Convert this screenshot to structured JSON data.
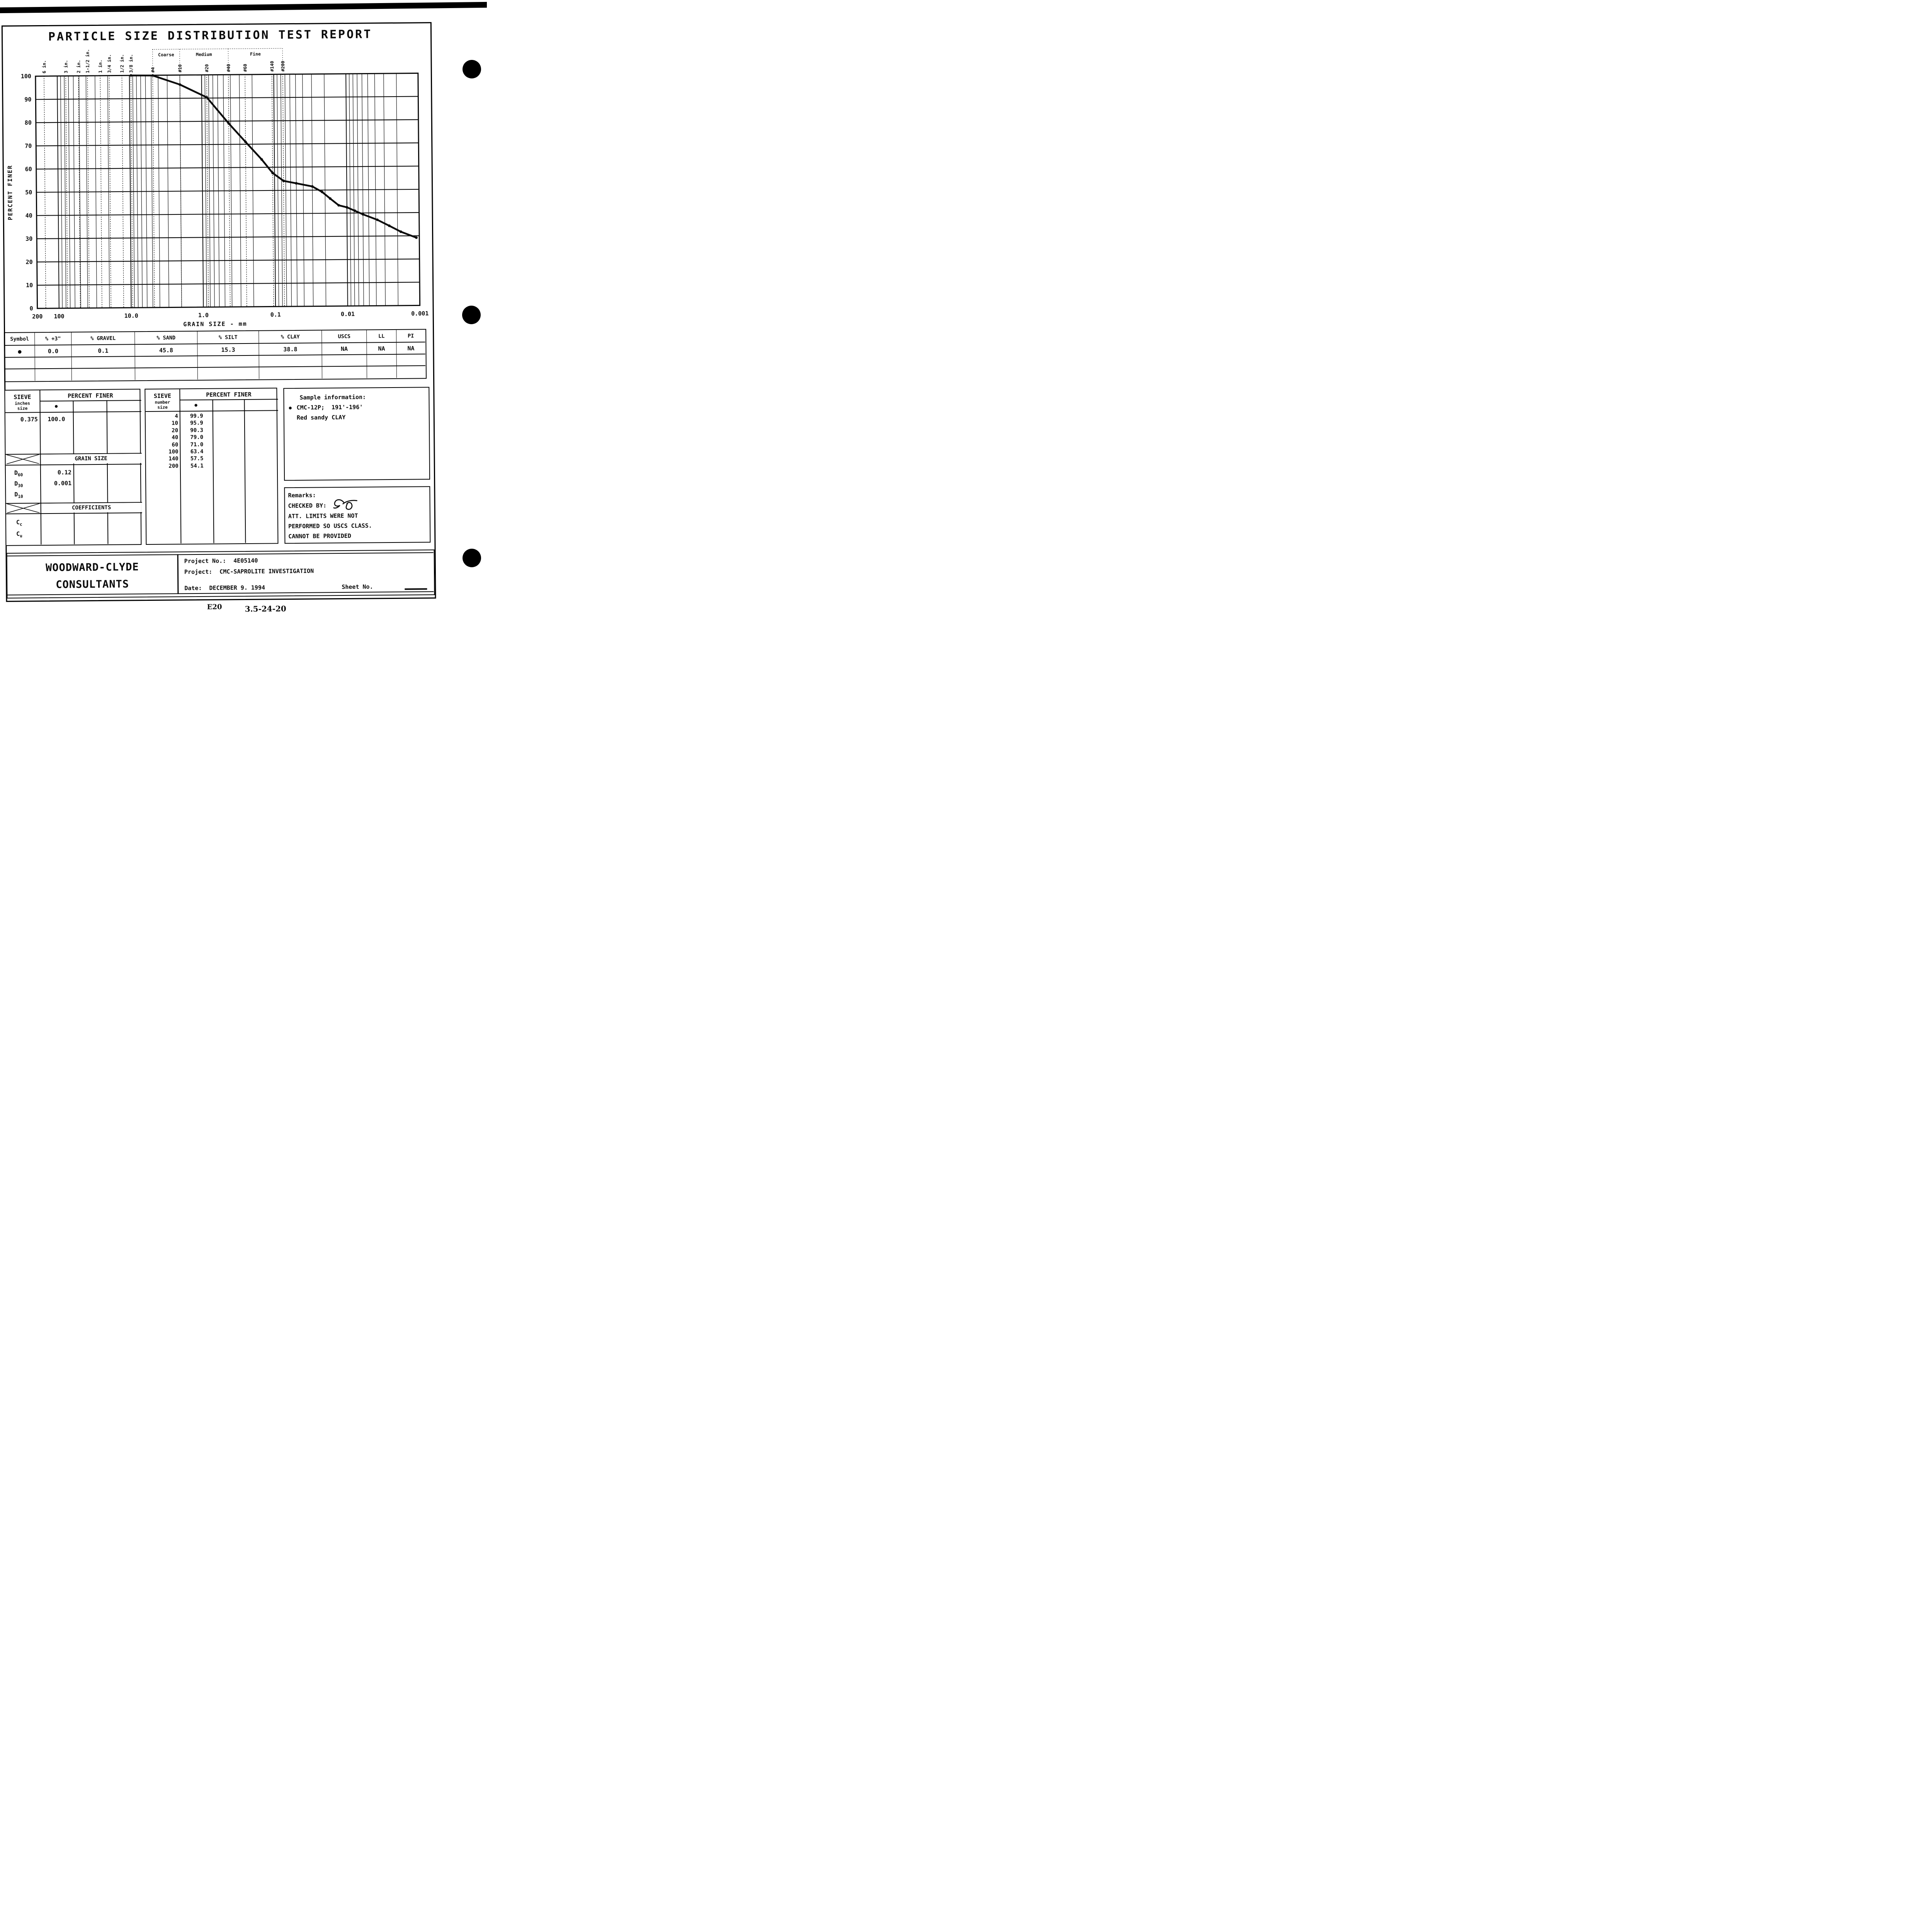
{
  "colors": {
    "ink": "#0b0b0b",
    "paper": "#ffffff"
  },
  "page": {
    "title": "PARTICLE SIZE DISTRIBUTION TEST REPORT",
    "caption_code": "E20",
    "caption_number": "3.5-24-20"
  },
  "chart_data": {
    "type": "line",
    "title": "",
    "xlabel": "GRAIN SIZE - mm",
    "ylabel": "PERCENT FINER",
    "x_scale": "log",
    "x_domain": [
      200,
      0.001
    ],
    "ylim": [
      0,
      100
    ],
    "grid": "on",
    "y_ticks": [
      100,
      90,
      80,
      70,
      60,
      50,
      40,
      30,
      20,
      10,
      0
    ],
    "x_tick_labels": [
      {
        "value": 200,
        "label": "200"
      },
      {
        "value": 100,
        "label": "100"
      },
      {
        "value": 10,
        "label": "10.0"
      },
      {
        "value": 1,
        "label": "1.0"
      },
      {
        "value": 0.1,
        "label": "0.1"
      },
      {
        "value": 0.01,
        "label": "0.01"
      },
      {
        "value": 0.001,
        "label": "0.001"
      }
    ],
    "sieve_marks": [
      {
        "label": "6 in.",
        "mm": 152.4
      },
      {
        "label": "3 in.",
        "mm": 76.2
      },
      {
        "label": "2 in.",
        "mm": 50.8
      },
      {
        "label": "1-1/2 in.",
        "mm": 38.1
      },
      {
        "label": "1 in.",
        "mm": 25.4
      },
      {
        "label": "3/4 in.",
        "mm": 19.05
      },
      {
        "label": "1/2 in.",
        "mm": 12.7
      },
      {
        "label": "3/8 in.",
        "mm": 9.525
      },
      {
        "label": "#4",
        "mm": 4.75
      },
      {
        "label": "#10",
        "mm": 2.0
      },
      {
        "label": "#20",
        "mm": 0.85
      },
      {
        "label": "#40",
        "mm": 0.425
      },
      {
        "label": "#60",
        "mm": 0.25
      },
      {
        "label": "#140",
        "mm": 0.106
      },
      {
        "label": "#200",
        "mm": 0.075
      }
    ],
    "fractions": [
      {
        "label": "Coarse",
        "from_mm": 4.75,
        "to_mm": 2.0
      },
      {
        "label": "Medium",
        "from_mm": 2.0,
        "to_mm": 0.425
      },
      {
        "label": "Fine",
        "from_mm": 0.425,
        "to_mm": 0.075
      }
    ],
    "series": [
      {
        "name": "CMC-12P; 191'-196' Red sandy CLAY",
        "symbol": "dot",
        "points": [
          [
            9.5,
            100.0
          ],
          [
            4.75,
            99.9
          ],
          [
            2.0,
            95.9
          ],
          [
            0.85,
            90.3
          ],
          [
            0.425,
            79.0
          ],
          [
            0.25,
            71.0
          ],
          [
            0.15,
            63.4
          ],
          [
            0.106,
            57.5
          ],
          [
            0.075,
            54.1
          ],
          [
            0.05,
            53.0
          ],
          [
            0.03,
            51.6
          ],
          [
            0.022,
            49.2
          ],
          [
            0.017,
            46.3
          ],
          [
            0.013,
            43.4
          ],
          [
            0.01,
            42.5
          ],
          [
            0.0078,
            41.0
          ],
          [
            0.006,
            39.4
          ],
          [
            0.0038,
            37.0
          ],
          [
            0.0026,
            34.4
          ],
          [
            0.0018,
            31.8
          ],
          [
            0.0011,
            29.2
          ]
        ]
      }
    ]
  },
  "summary_table": {
    "headers": [
      "Symbol",
      "% +3\"",
      "% GRAVEL",
      "% SAND",
      "% SILT",
      "% CLAY",
      "USCS",
      "LL",
      "PI"
    ],
    "row": [
      "●",
      "0.0",
      "0.1",
      "45.8",
      "15.3",
      "38.8",
      "NA",
      "NA",
      "NA"
    ]
  },
  "sieve_inches_table": {
    "col_header": "SIEVE",
    "col_sub1": "inches",
    "col_sub2": "size",
    "main_header": "PERCENT FINER",
    "symbol": "●",
    "rows": [
      {
        "size": "0.375",
        "value": "100.0"
      }
    ]
  },
  "grain_size": {
    "title": "GRAIN SIZE",
    "rows": [
      {
        "d": "D",
        "sub": "60",
        "value": "0.12"
      },
      {
        "d": "D",
        "sub": "30",
        "value": "0.001"
      },
      {
        "d": "D",
        "sub": "10",
        "value": ""
      }
    ]
  },
  "coefficients": {
    "title": "COEFFICIENTS",
    "rows": [
      {
        "c": "C",
        "sub": "c",
        "value": ""
      },
      {
        "c": "C",
        "sub": "u",
        "value": ""
      }
    ]
  },
  "sieve_number_table": {
    "col_header": "SIEVE",
    "col_sub1": "number",
    "col_sub2": "size",
    "main_header": "PERCENT FINER",
    "symbol": "●",
    "rows": [
      {
        "size": "4",
        "value": "99.9"
      },
      {
        "size": "10",
        "value": "95.9"
      },
      {
        "size": "20",
        "value": "90.3"
      },
      {
        "size": "40",
        "value": "79.0"
      },
      {
        "size": "60",
        "value": "71.0"
      },
      {
        "size": "100",
        "value": "63.4"
      },
      {
        "size": "140",
        "value": "57.5"
      },
      {
        "size": "200",
        "value": "54.1"
      }
    ]
  },
  "sample_info": {
    "title": "Sample information:",
    "bullet": "●",
    "line1": "CMC-12P;  191'-196'",
    "line2": "Red sandy CLAY"
  },
  "remarks": {
    "title": "Remarks:",
    "checked_by_label": "CHECKED BY:",
    "lines": [
      "ATT. LIMITS WERE NOT",
      "PERFORMED SO USCS CLASS.",
      "CANNOT BE PROVIDED"
    ]
  },
  "footer": {
    "company_line1": "WOODWARD-CLYDE",
    "company_line2": "CONSULTANTS",
    "project_no_label": "Project No.:",
    "project_no": "4E05140",
    "project_label": "Project:",
    "project": "CMC-SAPROLITE INVESTIGATION",
    "date_label": "Date:",
    "date": "DECEMBER 9. 1994",
    "sheet_label": "Sheet No."
  }
}
